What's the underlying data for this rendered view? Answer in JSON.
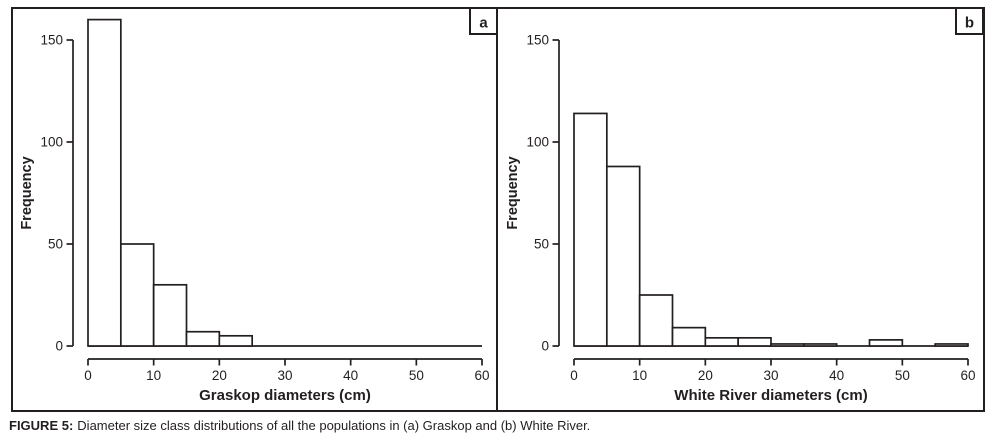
{
  "figure": {
    "caption_label": "FIGURE 5:",
    "caption_text": "Diameter size class distributions of all the populations in (a) Graskop and (b) White River."
  },
  "colors": {
    "ink": "#231f20",
    "background": "#ffffff"
  },
  "chart_data": [
    {
      "type": "bar",
      "panel_label": "a",
      "title": "",
      "xlabel": "Graskop diameters (cm)",
      "ylabel": "Frequency",
      "bin_start": 0,
      "bin_width": 5,
      "values": [
        160,
        50,
        30,
        7,
        5,
        0,
        0,
        0,
        0,
        0,
        0,
        0
      ],
      "xticks": [
        0,
        10,
        20,
        30,
        40,
        50,
        60
      ],
      "yticks": [
        0,
        50,
        100,
        150
      ],
      "xlim": [
        0,
        60
      ],
      "ylim": [
        0,
        150
      ],
      "grid": false,
      "legend": false
    },
    {
      "type": "bar",
      "panel_label": "b",
      "title": "",
      "xlabel": "White River diameters (cm)",
      "ylabel": "Frequency",
      "bin_start": 0,
      "bin_width": 5,
      "values": [
        114,
        88,
        25,
        9,
        4,
        4,
        1,
        1,
        0,
        3,
        0,
        1
      ],
      "xticks": [
        0,
        10,
        20,
        30,
        40,
        50,
        60
      ],
      "yticks": [
        0,
        50,
        100,
        150
      ],
      "xlim": [
        0,
        60
      ],
      "ylim": [
        0,
        150
      ],
      "grid": false,
      "legend": false
    }
  ]
}
